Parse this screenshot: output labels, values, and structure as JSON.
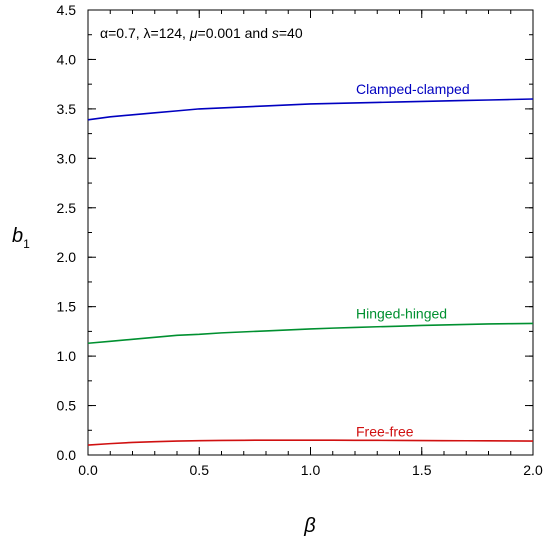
{
  "chart_data": {
    "type": "line",
    "xlabel": "β",
    "ylabel_main": "b",
    "ylabel_sub": "1",
    "annotation": {
      "alpha_sym": "α",
      "alpha_val": "=0.7, ",
      "lambda_sym": "λ",
      "lambda_val": "=124, ",
      "mu_sym": "μ",
      "mu_val": "=0.001 and ",
      "s_sym": "s",
      "s_val": "=40"
    },
    "xlim": [
      0,
      2
    ],
    "ylim": [
      0,
      4.5
    ],
    "x_ticks": [
      "0.0",
      "0.5",
      "1.0",
      "1.5",
      "2.0"
    ],
    "y_ticks": [
      "0.0",
      "0.5",
      "1.0",
      "1.5",
      "2.0",
      "2.5",
      "3.0",
      "3.5",
      "4.0",
      "4.5"
    ],
    "grid": false,
    "series": [
      {
        "name": "Clamped-clamped",
        "color": "#0000c0",
        "x": [
          0,
          0.1,
          0.2,
          0.3,
          0.4,
          0.5,
          0.6,
          0.7,
          0.8,
          0.9,
          1.0,
          1.1,
          1.2,
          1.3,
          1.4,
          1.5,
          1.6,
          1.7,
          1.8,
          1.9,
          2.0
        ],
        "y": [
          3.39,
          3.42,
          3.44,
          3.46,
          3.48,
          3.5,
          3.51,
          3.52,
          3.53,
          3.54,
          3.55,
          3.555,
          3.56,
          3.565,
          3.57,
          3.575,
          3.58,
          3.585,
          3.59,
          3.595,
          3.6
        ]
      },
      {
        "name": "Hinged-hinged",
        "color": "#009030",
        "x": [
          0,
          0.1,
          0.2,
          0.3,
          0.4,
          0.5,
          0.6,
          0.7,
          0.8,
          0.9,
          1.0,
          1.1,
          1.2,
          1.3,
          1.4,
          1.5,
          1.6,
          1.7,
          1.8,
          1.9,
          2.0
        ],
        "y": [
          1.13,
          1.15,
          1.17,
          1.19,
          1.21,
          1.22,
          1.235,
          1.245,
          1.255,
          1.265,
          1.275,
          1.283,
          1.29,
          1.297,
          1.303,
          1.31,
          1.315,
          1.32,
          1.325,
          1.328,
          1.33
        ]
      },
      {
        "name": "Free-free",
        "color": "#d01010",
        "x": [
          0,
          0.1,
          0.2,
          0.3,
          0.4,
          0.5,
          0.6,
          0.7,
          0.8,
          0.9,
          1.0,
          1.1,
          1.2,
          1.3,
          1.4,
          1.5,
          1.6,
          1.7,
          1.8,
          1.9,
          2.0
        ],
        "y": [
          0.1,
          0.115,
          0.127,
          0.135,
          0.141,
          0.145,
          0.147,
          0.149,
          0.15,
          0.15,
          0.15,
          0.15,
          0.149,
          0.148,
          0.147,
          0.146,
          0.145,
          0.144,
          0.143,
          0.142,
          0.141
        ]
      }
    ],
    "series_label_positions": [
      {
        "series": 0,
        "x": 1.2,
        "y": 3.7
      },
      {
        "series": 1,
        "x": 1.2,
        "y": 1.43
      },
      {
        "series": 2,
        "x": 1.2,
        "y": 0.24
      }
    ]
  }
}
